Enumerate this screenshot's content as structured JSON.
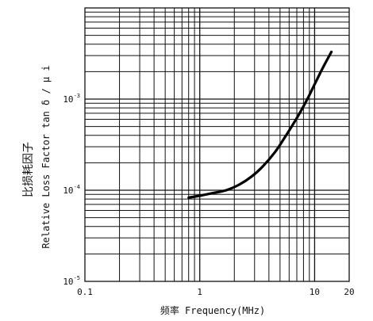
{
  "chart_data": {
    "type": "line",
    "xscale": "log",
    "yscale": "log",
    "xlim": [
      0.1,
      20
    ],
    "ylim": [
      1e-05,
      0.01
    ],
    "xticks": [
      {
        "value": 0.1,
        "label": "0.1"
      },
      {
        "value": 1,
        "label": "1"
      },
      {
        "value": 10,
        "label": "10"
      },
      {
        "value": 20,
        "label": "20"
      }
    ],
    "yticks": [
      {
        "value": 1e-05,
        "base": "10",
        "exp": "-5"
      },
      {
        "value": 0.0001,
        "base": "10",
        "exp": "-4"
      },
      {
        "value": 0.001,
        "base": "10",
        "exp": "-3"
      }
    ],
    "xlabel": "频率 Frequency(MHz)",
    "ylabel_cn": "比损耗因子",
    "ylabel_en": "Relative Loss Factor  tan δ / μ i",
    "grid": true,
    "series": [
      {
        "x": [
          0.8,
          1.0,
          1.3,
          1.7,
          2.2,
          2.8,
          3.5,
          4.5,
          5.5,
          7.0,
          8.5,
          10.0,
          12.0,
          14.0
        ],
        "y": [
          8.3e-05,
          8.7e-05,
          9.3e-05,
          0.0001,
          0.000115,
          0.00014,
          0.00018,
          0.00026,
          0.00038,
          0.00062,
          0.00096,
          0.00145,
          0.0023,
          0.0033
        ]
      }
    ]
  }
}
